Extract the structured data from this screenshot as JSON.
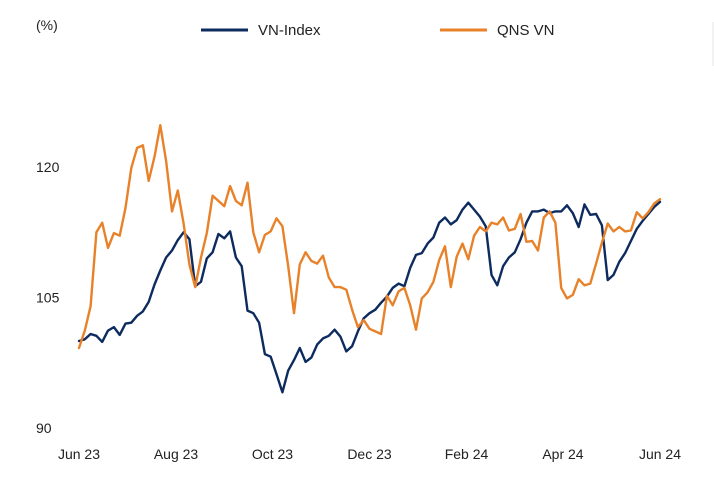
{
  "chart_data": {
    "type": "line",
    "ylabel": "(%)",
    "ylim": [
      90,
      130
    ],
    "yticks": [
      90,
      105,
      120
    ],
    "xlim": [
      0,
      100
    ],
    "xticks": [
      {
        "label": "Jun 23",
        "x": 0
      },
      {
        "label": "Aug 23",
        "x": 16.7
      },
      {
        "label": "Oct 23",
        "x": 33.3
      },
      {
        "label": "Dec 23",
        "x": 50
      },
      {
        "label": "Feb 24",
        "x": 66.7
      },
      {
        "label": "Apr 24",
        "x": 83.3
      },
      {
        "label": "Jun 24",
        "x": 100
      }
    ],
    "grid": false,
    "legend_position": "top",
    "series": [
      {
        "name": "VN-Index",
        "color": "#0d2b5e",
        "points": [
          [
            0,
            100
          ],
          [
            1,
            100.2
          ],
          [
            2,
            100.8
          ],
          [
            3,
            100.6
          ],
          [
            4,
            99.9
          ],
          [
            5,
            101.2
          ],
          [
            6,
            101.6
          ],
          [
            7,
            100.7
          ],
          [
            8,
            102
          ],
          [
            9,
            102.1
          ],
          [
            10,
            102.9
          ],
          [
            11,
            103.4
          ],
          [
            12,
            104.5
          ],
          [
            13,
            106.5
          ],
          [
            14,
            108.1
          ],
          [
            15,
            109.6
          ],
          [
            16,
            110.4
          ],
          [
            17,
            111.6
          ],
          [
            18,
            112.5
          ],
          [
            19,
            111.7
          ],
          [
            20,
            106.3
          ],
          [
            21,
            106.8
          ],
          [
            22,
            109.5
          ],
          [
            23,
            110.2
          ],
          [
            24,
            112.3
          ],
          [
            25,
            111.8
          ],
          [
            26,
            112.6
          ],
          [
            27,
            109.6
          ],
          [
            28,
            108.6
          ],
          [
            29,
            103.5
          ],
          [
            30,
            103.2
          ],
          [
            31,
            102.1
          ],
          [
            32,
            98.5
          ],
          [
            33,
            98.2
          ],
          [
            34,
            96.2
          ],
          [
            35,
            94.1
          ],
          [
            36,
            96.6
          ],
          [
            37,
            97.8
          ],
          [
            38,
            99.2
          ],
          [
            39,
            97.6
          ],
          [
            40,
            98.1
          ],
          [
            41,
            99.6
          ],
          [
            42,
            100.3
          ],
          [
            43,
            100.6
          ],
          [
            44,
            101.3
          ],
          [
            45,
            100.5
          ],
          [
            46,
            98.8
          ],
          [
            47,
            99.4
          ],
          [
            48,
            101.1
          ],
          [
            49,
            102.6
          ],
          [
            50,
            103.2
          ],
          [
            51,
            103.6
          ],
          [
            52,
            104.4
          ],
          [
            53,
            105.1
          ],
          [
            54,
            106.1
          ],
          [
            55,
            106.6
          ],
          [
            56,
            106.3
          ],
          [
            57,
            108.4
          ],
          [
            58,
            109.9
          ],
          [
            59,
            110.1
          ],
          [
            60,
            111.2
          ],
          [
            61,
            111.9
          ],
          [
            62,
            113.6
          ],
          [
            63,
            114.2
          ],
          [
            64,
            113.4
          ],
          [
            65,
            113.9
          ],
          [
            66,
            115.1
          ],
          [
            67,
            115.9
          ],
          [
            68,
            115.1
          ],
          [
            69,
            114.3
          ],
          [
            70,
            113.2
          ],
          [
            71,
            107.6
          ],
          [
            72,
            106.4
          ],
          [
            73,
            108.6
          ],
          [
            74,
            109.6
          ],
          [
            75,
            110.2
          ],
          [
            76,
            111.7
          ],
          [
            77,
            113.6
          ],
          [
            78,
            114.9
          ],
          [
            79,
            114.9
          ],
          [
            80,
            115.1
          ],
          [
            81,
            114.7
          ],
          [
            82,
            114.9
          ],
          [
            83,
            114.9
          ],
          [
            84,
            115.6
          ],
          [
            85,
            114.7
          ],
          [
            86,
            113.1
          ],
          [
            87,
            115.7
          ],
          [
            88,
            114.5
          ],
          [
            89,
            114.6
          ],
          [
            90,
            113.3
          ],
          [
            91,
            107
          ],
          [
            92,
            107.6
          ],
          [
            93,
            109.1
          ],
          [
            94,
            110.1
          ],
          [
            95,
            111.5
          ],
          [
            96,
            112.9
          ],
          [
            97,
            113.8
          ],
          [
            98,
            114.6
          ],
          [
            99,
            115.4
          ],
          [
            100,
            116
          ]
        ]
      },
      {
        "name": "QNS VN",
        "color": "#e8822a",
        "points": [
          [
            0,
            99.2
          ],
          [
            1,
            101.2
          ],
          [
            2,
            104
          ],
          [
            3,
            112.5
          ],
          [
            4,
            113.6
          ],
          [
            5,
            110.7
          ],
          [
            6,
            112.4
          ],
          [
            7,
            112.1
          ],
          [
            8,
            115.3
          ],
          [
            9,
            119.9
          ],
          [
            10,
            122.2
          ],
          [
            11,
            122.5
          ],
          [
            12,
            118.4
          ],
          [
            13,
            121.2
          ],
          [
            14,
            124.8
          ],
          [
            15,
            120.7
          ],
          [
            16,
            114.9
          ],
          [
            17,
            117.3
          ],
          [
            18,
            113.5
          ],
          [
            19,
            108.8
          ],
          [
            20,
            106.2
          ],
          [
            21,
            109.6
          ],
          [
            22,
            112.4
          ],
          [
            23,
            116.7
          ],
          [
            24,
            116.1
          ],
          [
            25,
            115.5
          ],
          [
            26,
            117.8
          ],
          [
            27,
            116.1
          ],
          [
            28,
            115.6
          ],
          [
            29,
            118.2
          ],
          [
            30,
            112.5
          ],
          [
            31,
            110.2
          ],
          [
            32,
            112.2
          ],
          [
            33,
            112.6
          ],
          [
            34,
            114.1
          ],
          [
            35,
            113.2
          ],
          [
            36,
            108.6
          ],
          [
            37,
            103.2
          ],
          [
            38,
            108.8
          ],
          [
            39,
            110.2
          ],
          [
            40,
            109.2
          ],
          [
            41,
            108.9
          ],
          [
            42,
            109.8
          ],
          [
            43,
            107.3
          ],
          [
            44,
            106.2
          ],
          [
            45,
            106.2
          ],
          [
            46,
            105.9
          ],
          [
            47,
            103.6
          ],
          [
            48,
            101.6
          ],
          [
            49,
            102.4
          ],
          [
            50,
            101.4
          ],
          [
            51,
            101.1
          ],
          [
            52,
            100.8
          ],
          [
            53,
            105.2
          ],
          [
            54,
            104.1
          ],
          [
            55,
            105.7
          ],
          [
            56,
            106.1
          ],
          [
            57,
            104.1
          ],
          [
            58,
            101.3
          ],
          [
            59,
            104.9
          ],
          [
            60,
            105.6
          ],
          [
            61,
            106.8
          ],
          [
            62,
            109.3
          ],
          [
            63,
            110.9
          ],
          [
            64,
            106.2
          ],
          [
            65,
            109.7
          ],
          [
            66,
            111.2
          ],
          [
            67,
            109.4
          ],
          [
            68,
            112.1
          ],
          [
            69,
            113.1
          ],
          [
            70,
            112.6
          ],
          [
            71,
            113.6
          ],
          [
            72,
            113.4
          ],
          [
            73,
            114.2
          ],
          [
            74,
            112.7
          ],
          [
            75,
            112.9
          ],
          [
            76,
            114.6
          ],
          [
            77,
            111.4
          ],
          [
            78,
            111.5
          ],
          [
            79,
            110.4
          ],
          [
            80,
            114.2
          ],
          [
            81,
            114.9
          ],
          [
            82,
            113.6
          ],
          [
            83,
            106.1
          ],
          [
            84,
            104.9
          ],
          [
            85,
            105.3
          ],
          [
            86,
            107.1
          ],
          [
            87,
            106.4
          ],
          [
            88,
            106.6
          ],
          [
            89,
            108.9
          ],
          [
            90,
            111.3
          ],
          [
            91,
            113.5
          ],
          [
            92,
            112.6
          ],
          [
            93,
            113.1
          ],
          [
            94,
            112.6
          ],
          [
            95,
            112.7
          ],
          [
            96,
            114.8
          ],
          [
            97,
            114.1
          ],
          [
            98,
            114.8
          ],
          [
            99,
            115.8
          ],
          [
            100,
            116.3
          ]
        ]
      }
    ]
  }
}
